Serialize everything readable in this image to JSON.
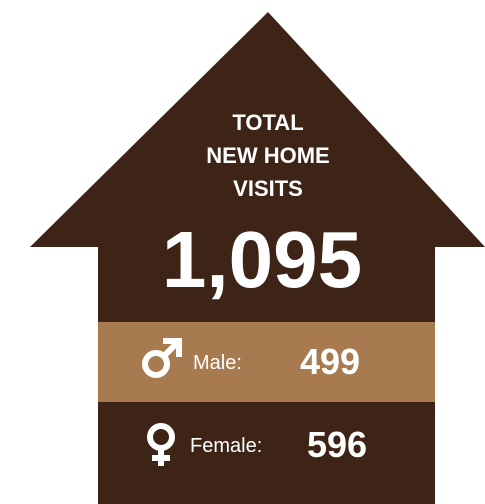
{
  "title_lines": [
    "TOTAL",
    "NEW HOME",
    "VISITS"
  ],
  "total": "1,095",
  "breakdown": [
    {
      "label": "Male:",
      "value": 499
    },
    {
      "label": "Female:",
      "value": 596
    }
  ]
}
